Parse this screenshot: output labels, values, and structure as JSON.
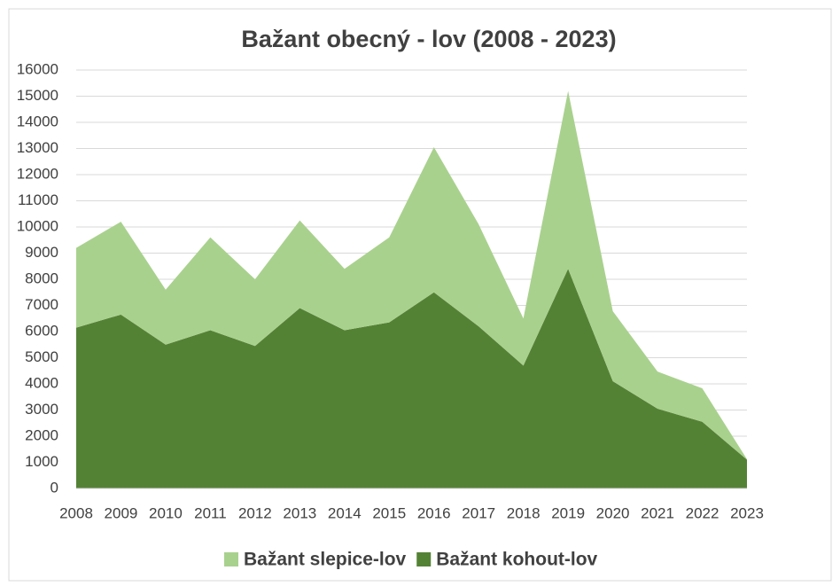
{
  "chart_data": {
    "type": "stacked_area",
    "title": "Bažant obecný - lov (2008 - 2023)",
    "categories": [
      "2008",
      "2009",
      "2010",
      "2011",
      "2012",
      "2013",
      "2014",
      "2015",
      "2016",
      "2017",
      "2018",
      "2019",
      "2020",
      "2021",
      "2022",
      "2023"
    ],
    "series": [
      {
        "name": "Bažant kohout-lov",
        "color": "#548235",
        "values": [
          6150,
          6650,
          5500,
          6050,
          5450,
          6900,
          6050,
          6350,
          7500,
          6200,
          4700,
          8400,
          4100,
          3050,
          2550,
          1100
        ]
      },
      {
        "name": "Bažant slepice-lov",
        "color": "#a9d18e",
        "values": [
          3050,
          3550,
          2100,
          3550,
          2550,
          3350,
          2350,
          3250,
          5550,
          3900,
          1800,
          6800,
          2680,
          1420,
          1280,
          20
        ]
      }
    ],
    "ylim": [
      0,
      16000
    ],
    "yticks": [
      0,
      1000,
      2000,
      3000,
      4000,
      5000,
      6000,
      7000,
      8000,
      9000,
      10000,
      11000,
      12000,
      13000,
      14000,
      15000,
      16000
    ],
    "grid": true,
    "legend": "bottom"
  }
}
